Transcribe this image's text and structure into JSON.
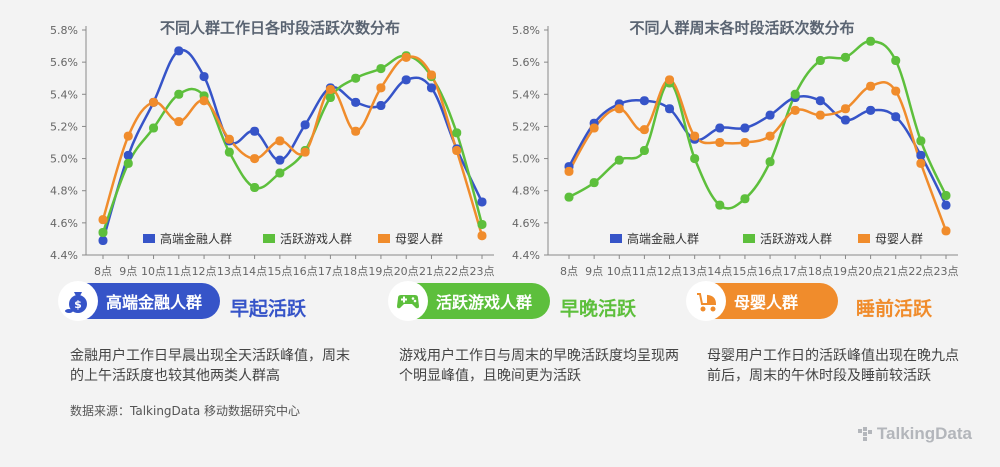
{
  "chart_data": [
    {
      "type": "line",
      "title": "不同人群工作日各时段活跃次数分布",
      "categories": [
        "8点",
        "9点",
        "10点",
        "11点",
        "12点",
        "13点",
        "14点",
        "15点",
        "16点",
        "17点",
        "18点",
        "19点",
        "20点",
        "21点",
        "22点",
        "23点"
      ],
      "y_ticks": [
        "4.4%",
        "4.6%",
        "4.8%",
        "5.0%",
        "5.2%",
        "5.4%",
        "5.6%",
        "5.8%"
      ],
      "ylim": [
        4.4,
        5.8
      ],
      "y_unit": "%",
      "grid": false,
      "legend_position": "bottom-center",
      "series": [
        {
          "name": "高端金融人群",
          "color": "#3654c8",
          "values": [
            4.49,
            5.02,
            5.35,
            5.67,
            5.51,
            5.11,
            5.17,
            4.99,
            5.21,
            5.44,
            5.35,
            5.33,
            5.49,
            5.44,
            5.06,
            4.73
          ]
        },
        {
          "name": "活跃游戏人群",
          "color": "#5dbf3c",
          "values": [
            4.54,
            4.97,
            5.19,
            5.4,
            5.39,
            5.04,
            4.82,
            4.91,
            5.05,
            5.38,
            5.5,
            5.56,
            5.64,
            5.51,
            5.16,
            4.59
          ]
        },
        {
          "name": "母婴人群",
          "color": "#f08c2c",
          "values": [
            4.62,
            5.14,
            5.35,
            5.23,
            5.36,
            5.12,
            5.0,
            5.11,
            5.04,
            5.43,
            5.17,
            5.44,
            5.63,
            5.52,
            5.05,
            4.52
          ]
        }
      ]
    },
    {
      "type": "line",
      "title": "不同人群周末各时段活跃次数分布",
      "categories": [
        "8点",
        "9点",
        "10点",
        "11点",
        "12点",
        "13点",
        "14点",
        "15点",
        "16点",
        "17点",
        "18点",
        "19点",
        "20点",
        "21点",
        "22点",
        "23点"
      ],
      "y_ticks": [
        "4.4%",
        "4.6%",
        "4.8%",
        "5.0%",
        "5.2%",
        "5.4%",
        "5.6%",
        "5.8%"
      ],
      "ylim": [
        4.4,
        5.8
      ],
      "y_unit": "%",
      "grid": false,
      "legend_position": "bottom-center",
      "series": [
        {
          "name": "高端金融人群",
          "color": "#3654c8",
          "values": [
            4.95,
            5.22,
            5.34,
            5.36,
            5.31,
            5.12,
            5.19,
            5.19,
            5.27,
            5.38,
            5.36,
            5.24,
            5.3,
            5.26,
            5.02,
            4.71
          ]
        },
        {
          "name": "活跃游戏人群",
          "color": "#5dbf3c",
          "values": [
            4.76,
            4.85,
            4.99,
            5.05,
            5.47,
            5.0,
            4.71,
            4.75,
            4.98,
            5.4,
            5.61,
            5.63,
            5.73,
            5.61,
            5.11,
            4.77
          ]
        },
        {
          "name": "母婴人群",
          "color": "#f08c2c",
          "values": [
            4.92,
            5.19,
            5.31,
            5.18,
            5.49,
            5.14,
            5.1,
            5.1,
            5.14,
            5.3,
            5.27,
            5.31,
            5.45,
            5.42,
            4.97,
            4.55
          ]
        }
      ]
    }
  ],
  "segments": [
    {
      "label": "高端金融人群",
      "feature": "早起活跃",
      "color": "#3654c8",
      "icon": "money-bag-icon",
      "desc": "金融用户工作日早晨出现全天活跃峰值，周末的上午活跃度也较其他两类人群高"
    },
    {
      "label": "活跃游戏人群",
      "feature": "早晚活跃",
      "color": "#5dbf3c",
      "icon": "gamepad-icon",
      "desc": "游戏用户工作日与周末的早晚活跃度均呈现两个明显峰值，且晚间更为活跃"
    },
    {
      "label": "母婴人群",
      "feature": "睡前活跃",
      "color": "#f08c2c",
      "icon": "baby-stroller-icon",
      "desc": "母婴用户工作日的活跃峰值出现在晚九点前后，周末的午休时段及睡前较活跃"
    }
  ],
  "source": "数据来源：TalkingData 移动数据研究中心",
  "logo": "TalkingData"
}
